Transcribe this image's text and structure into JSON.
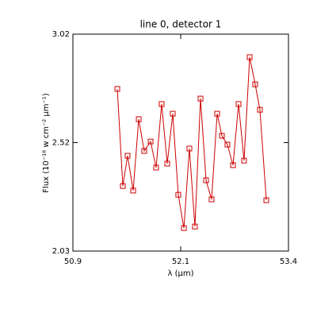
{
  "chart_data": {
    "type": "line",
    "title": "line 0, detector 1",
    "x_label": "λ (μm)",
    "y_label": "Flux (10⁻¹⁸ w cm⁻² μm⁻¹)",
    "x": [
      51.415,
      51.479,
      51.534,
      51.599,
      51.663,
      51.727,
      51.801,
      51.865,
      51.929,
      51.994,
      52.058,
      52.122,
      52.187,
      52.251,
      52.315,
      52.38,
      52.444,
      52.508,
      52.573,
      52.628,
      52.692,
      52.757,
      52.821,
      52.885,
      52.95,
      53.014,
      53.069,
      53.143
    ],
    "series": [
      {
        "color": "#cc0000",
        "values": [
          2.77,
          2.327,
          2.465,
          2.306,
          2.632,
          2.487,
          2.53,
          2.411,
          2.701,
          2.429,
          2.657,
          2.287,
          2.135,
          2.498,
          2.142,
          2.726,
          2.353,
          2.266,
          2.657,
          2.556,
          2.516,
          2.422,
          2.701,
          2.443,
          2.915,
          2.791,
          2.675,
          2.262
        ]
      }
    ],
    "xlim": [
      50.9,
      53.4
    ],
    "xticks": [
      50.9,
      {
        "value": 52.15,
        "label": "52.1"
      },
      53.4
    ],
    "ylim": [
      2.03,
      3.02
    ],
    "yticks": [
      2.03,
      {
        "value": 2.525,
        "label": "2.52"
      },
      3.02
    ]
  }
}
